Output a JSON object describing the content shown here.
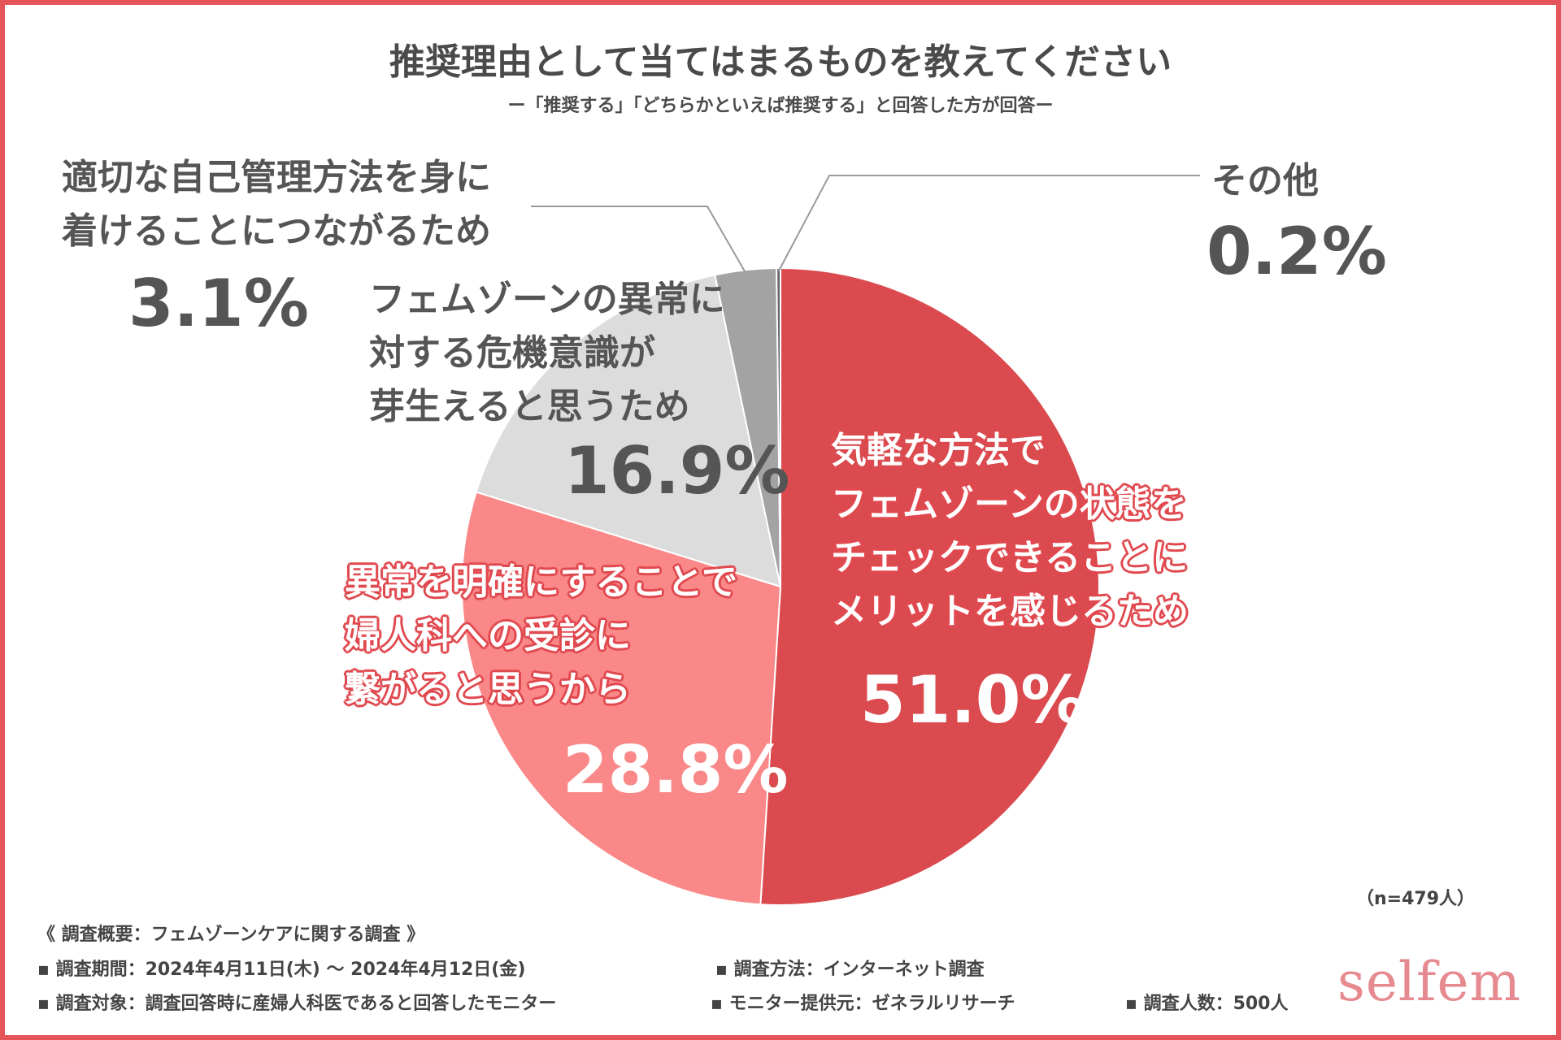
{
  "header": {
    "title": "推奨理由として当てはまるものを教えてください",
    "subtitle": "ー「推奨する」「どちらかといえば推奨する」と回答した方が回答ー"
  },
  "chart_data": {
    "type": "pie",
    "title": "推奨理由として当てはまるものを教えてください",
    "unit": "%",
    "slices": [
      {
        "label_lines": [
          "気軽な方法で",
          "フェムゾーンの状態を",
          "チェックできることに",
          "メリットを感じるため"
        ],
        "value": 51.0,
        "value_text": "51.0%",
        "color": "#da4a4e"
      },
      {
        "label_lines": [
          "異常を明確にすることで",
          "婦人科への受診に",
          "繋がると思うから"
        ],
        "value": 28.8,
        "value_text": "28.8%",
        "color": "#fa8888"
      },
      {
        "label_lines": [
          "フェムゾーンの異常に",
          "対する危機意識が",
          "芽生えると思うため"
        ],
        "value": 16.9,
        "value_text": "16.9%",
        "color": "#dcdcdc"
      },
      {
        "label_lines": [
          "適切な自己管理方法を身に",
          "着けることにつながるため"
        ],
        "value": 3.1,
        "value_text": "3.1%",
        "color": "#a3a3a3"
      },
      {
        "label_lines": [
          "その他"
        ],
        "value": 0.2,
        "value_text": "0.2%",
        "color": "#666666"
      }
    ],
    "sample_size": "（n=479人）"
  },
  "footer": {
    "overview": "《 調査概要：フェムゾーンケアに関する調査 》",
    "period": "▪ 調査期間：2024年4月11日(木) ～ 2024年4月12日(金)",
    "method": "▪ 調査方法：インターネット調査",
    "target": "▪ 調査対象：調査回答時に産婦人科医であると回答したモニター",
    "provider": "▪ モニター提供元：ゼネラルリサーチ",
    "count": "▪ 調査人数：500人"
  },
  "brand": {
    "name": "selfem"
  }
}
